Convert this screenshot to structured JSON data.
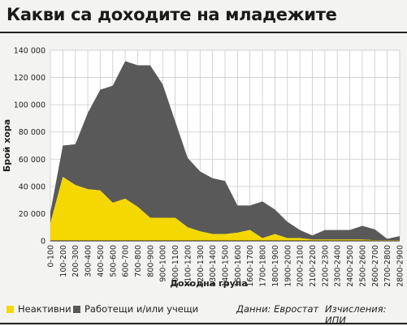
{
  "title": "Какви са доходите на младежите",
  "chart_data": {
    "type": "area",
    "stacked": true,
    "ylabel": "Брой хора",
    "xlabel": "Доходна група",
    "ylim": [
      0,
      140000
    ],
    "yticks": [
      0,
      20000,
      40000,
      60000,
      80000,
      100000,
      120000,
      140000
    ],
    "ytick_labels": [
      "0",
      "20 000",
      "40 000",
      "60 000",
      "80 000",
      "100 000",
      "120 000",
      "140 000"
    ],
    "grid": true,
    "categories": [
      "0-100",
      "100-200",
      "200-300",
      "300-400",
      "400-500",
      "500-600",
      "600-700",
      "700-800",
      "800-900",
      "900-1000",
      "1000-1100",
      "1100-1200",
      "1200-1300",
      "1300-1400",
      "1400-1500",
      "1500-1600",
      "1600-1700",
      "1700-1800",
      "1800-1900",
      "1900-2000",
      "2000-2100",
      "2100-2200",
      "2200-2300",
      "2300-2400",
      "2400-2500",
      "2500-2600",
      "2600-2700",
      "2700-2800",
      "2800-2900"
    ],
    "series": [
      {
        "name": "Неактивни",
        "color": "#f5d800",
        "values": [
          13000,
          47000,
          41000,
          38000,
          37000,
          28000,
          31000,
          25000,
          17000,
          17000,
          17000,
          10000,
          7000,
          5000,
          5000,
          6000,
          8000,
          2000,
          5000,
          2000,
          2000,
          1000,
          1000,
          1000,
          1000,
          1000,
          500,
          500,
          500
        ]
      },
      {
        "name": "Работещи и/или учещи",
        "color": "#595959",
        "values": [
          8000,
          23000,
          30000,
          56000,
          74000,
          86000,
          101000,
          104000,
          112000,
          98000,
          71000,
          51000,
          44000,
          41000,
          39000,
          20000,
          18000,
          27000,
          18000,
          12000,
          6000,
          3000,
          7000,
          7000,
          7000,
          10000,
          8000,
          1000,
          3000
        ]
      }
    ]
  },
  "legend": {
    "inactive": {
      "label": "Неактивни",
      "color": "#f5d800"
    },
    "working": {
      "label": "Работещи и/или учещи",
      "color": "#595959"
    }
  },
  "source": "Данни: Евростат",
  "calc": "Изчисления: ИПИ"
}
